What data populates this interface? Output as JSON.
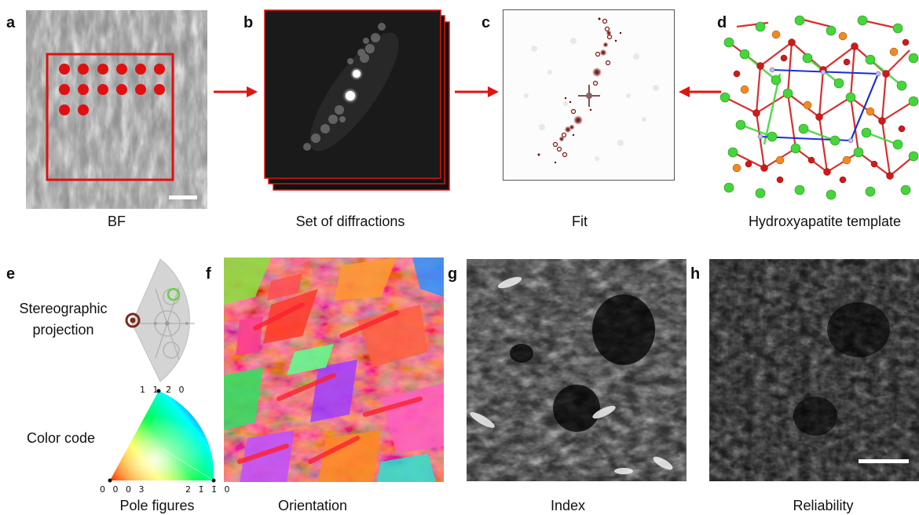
{
  "panels": {
    "a": {
      "letter": "a",
      "caption": "BF"
    },
    "b": {
      "letter": "b",
      "caption": "Set of diffractions"
    },
    "c": {
      "letter": "c",
      "caption": "Fit"
    },
    "d": {
      "letter": "d",
      "caption": "Hydroxyapatite template"
    },
    "e": {
      "letter": "e",
      "caption": "Pole figures",
      "stereo_label_1": "Stereographic",
      "stereo_label_2": "projection",
      "color_code_label": "Color code",
      "corner_top": "1 1 2̄ 0",
      "corner_left": "0 0 0 3",
      "corner_right": "2 1̄ 1̄ 0"
    },
    "f": {
      "letter": "f",
      "caption": "Orientation"
    },
    "g": {
      "letter": "g",
      "caption": "Index"
    },
    "h": {
      "letter": "h",
      "caption": "Reliability"
    }
  },
  "colors": {
    "arrow": "#e0140f",
    "highlight": "#e01010",
    "template_green": "#44d63a",
    "template_red": "#d41818",
    "template_orange": "#f08a1e",
    "template_blue": "#1b2fd0"
  }
}
